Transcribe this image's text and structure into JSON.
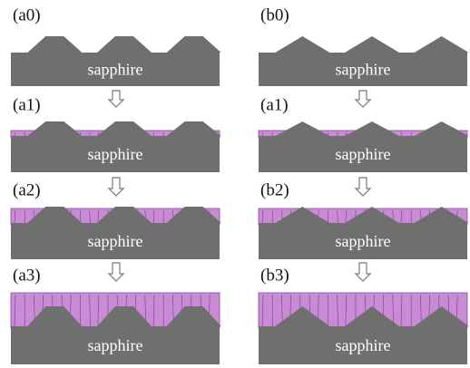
{
  "panels": [
    {
      "label": "(a0)",
      "substrate": "sapphire"
    },
    {
      "label": "(b0)",
      "substrate": "sapphire"
    },
    {
      "label": "(a1)",
      "substrate": "sapphire"
    },
    {
      "label": "(a1)",
      "substrate": "sapphire"
    },
    {
      "label": "(a2)",
      "substrate": "sapphire"
    },
    {
      "label": "(b2)",
      "substrate": "sapphire"
    },
    {
      "label": "(a3)",
      "substrate": "sapphire"
    },
    {
      "label": "(b3)",
      "substrate": "sapphire"
    }
  ]
}
